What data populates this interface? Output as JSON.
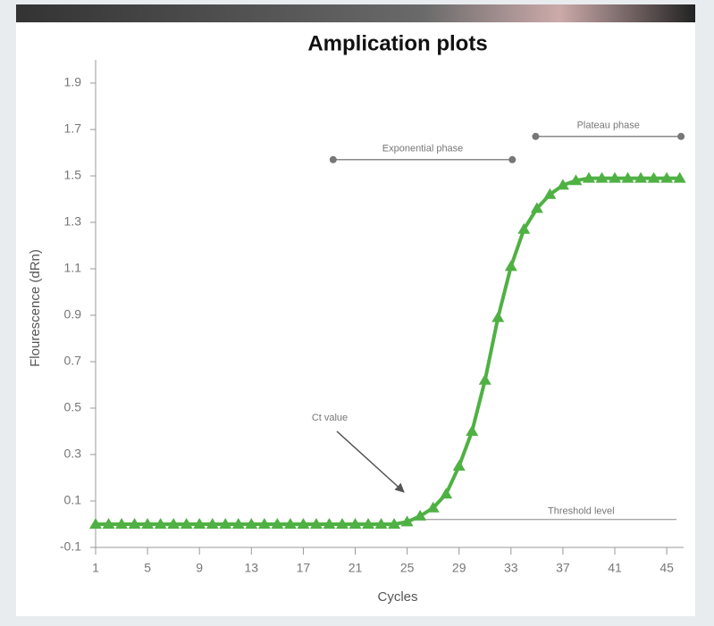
{
  "chart_data": {
    "type": "line",
    "title": "Amplication plots",
    "x_label": "Cycles",
    "y_label": "Flourescence (dRn)",
    "x": [
      1,
      2,
      3,
      4,
      5,
      6,
      7,
      8,
      9,
      10,
      11,
      12,
      13,
      14,
      15,
      16,
      17,
      18,
      19,
      20,
      21,
      22,
      23,
      24,
      25,
      26,
      27,
      28,
      29,
      30,
      31,
      32,
      33,
      34,
      35,
      36,
      37,
      38,
      39,
      40,
      41,
      42,
      43,
      44,
      45,
      46
    ],
    "series": [
      {
        "color": "#4fb143",
        "values": [
          0,
          0,
          0,
          0,
          0,
          0,
          0,
          0,
          0,
          0,
          0,
          0,
          0,
          0,
          0,
          0,
          0,
          0,
          0,
          0,
          0,
          0,
          0,
          0,
          0.01,
          0.035,
          0.07,
          0.13,
          0.25,
          0.4,
          0.62,
          0.89,
          1.11,
          1.27,
          1.36,
          1.42,
          1.46,
          1.48,
          1.49,
          1.49,
          1.49,
          1.49,
          1.49,
          1.49,
          1.49,
          1.49
        ]
      }
    ],
    "xlim": [
      1,
      46.3
    ],
    "ylim": [
      -0.1,
      2.0
    ],
    "xticks": [
      1,
      5,
      9,
      13,
      17,
      21,
      25,
      29,
      33,
      37,
      41,
      45
    ],
    "yticks": [
      -0.1,
      0.1,
      0.3,
      0.5,
      0.7,
      0.9,
      1.1,
      1.3,
      1.5,
      1.7,
      1.9
    ],
    "phases": [
      {
        "label": "Exponential phase",
        "start": 19.3,
        "end": 33.1,
        "y": 1.57
      },
      {
        "label": "Plateau phase",
        "start": 34.9,
        "end": 46.1,
        "y": 1.67
      }
    ],
    "threshold": {
      "label": "Threshold level",
      "value": 0.02
    },
    "annotation": "Ct value"
  }
}
